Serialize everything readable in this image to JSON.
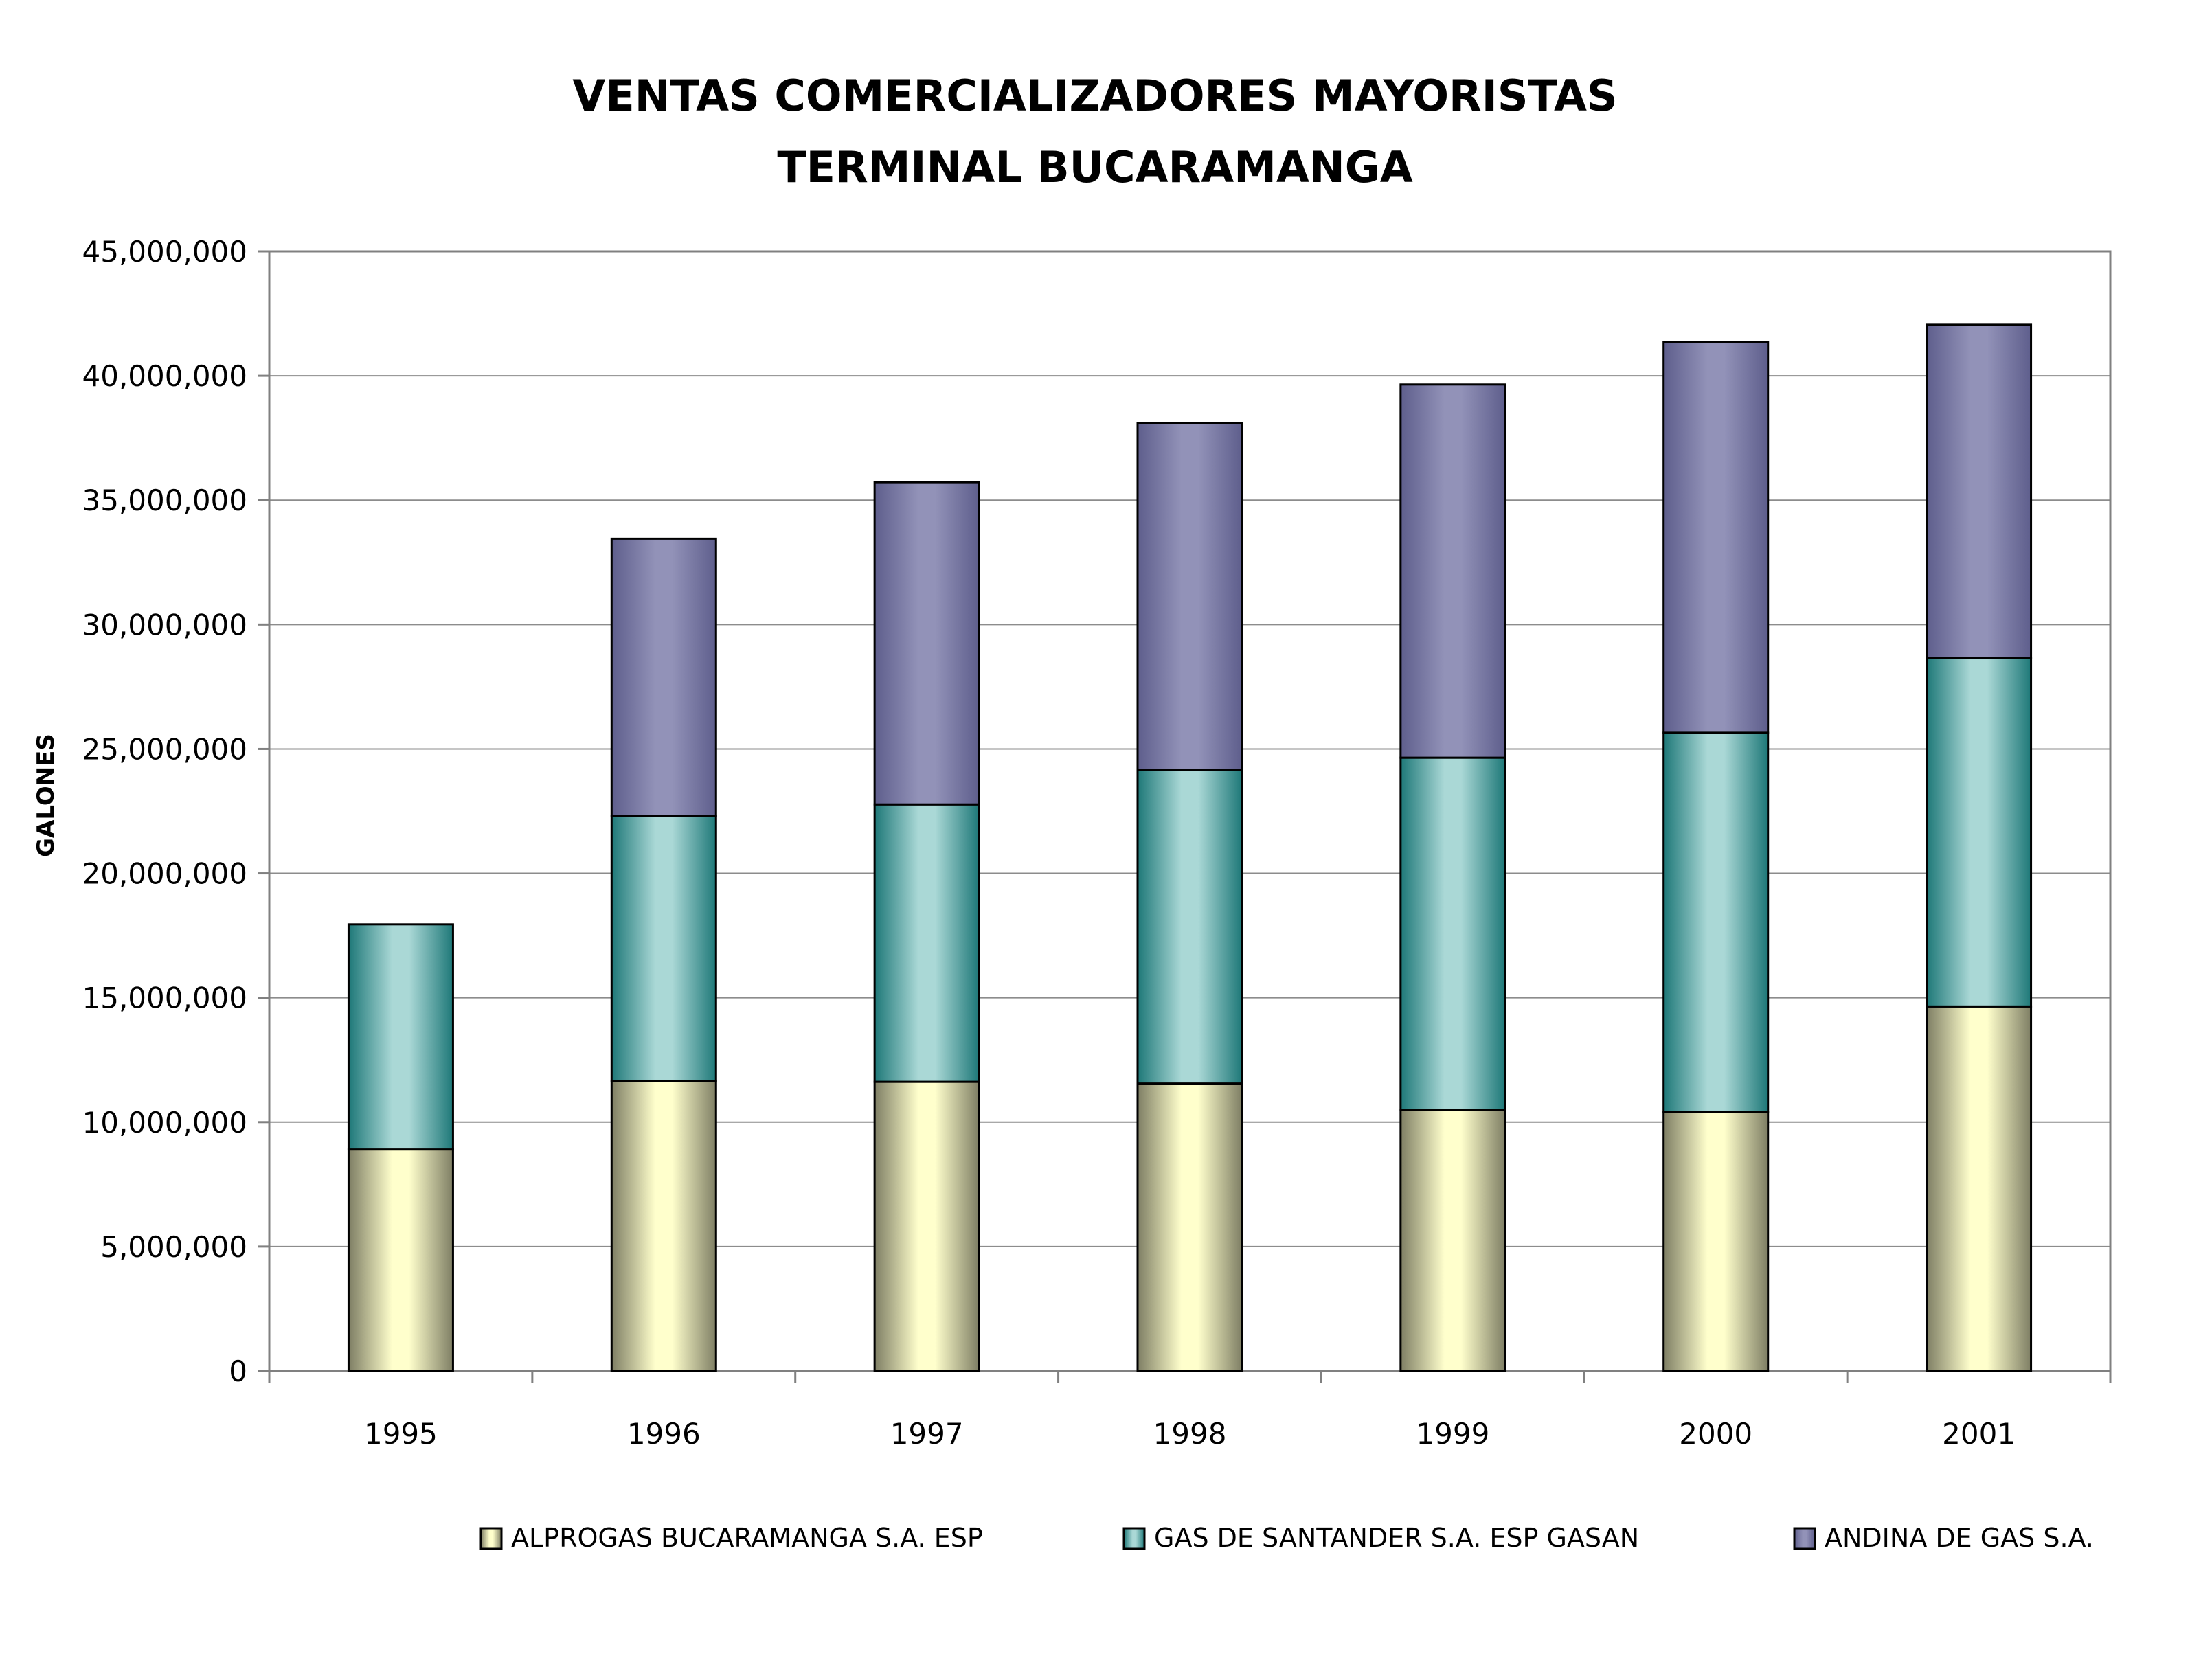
{
  "chart_data": {
    "type": "bar",
    "stacked": true,
    "title_lines": [
      "VENTAS COMERCIALIZADORES MAYORISTAS",
      "TERMINAL BUCARAMANGA"
    ],
    "xlabel": "",
    "ylabel": "GALONES",
    "categories": [
      "1995",
      "1996",
      "1997",
      "1998",
      "1999",
      "2000",
      "2001"
    ],
    "ylim": [
      0,
      45000000
    ],
    "ytick_step": 5000000,
    "yticks": [
      "0",
      "5,000,000",
      "10,000,000",
      "15,000,000",
      "20,000,000",
      "25,000,000",
      "30,000,000",
      "35,000,000",
      "40,000,000",
      "45,000,000"
    ],
    "grid": true,
    "legend_position": "bottom",
    "series": [
      {
        "name": "ALPROGAS BUCARAMANGA S.A. ESP",
        "values": [
          8900000,
          11650000,
          11620000,
          11550000,
          10500000,
          10400000,
          14650000
        ],
        "color_light": "#ffffcc",
        "color_dark": "#7e7e64"
      },
      {
        "name": "GAS DE SANTANDER S.A. ESP GASAN",
        "values": [
          9050000,
          10650000,
          11150000,
          12600000,
          14150000,
          15250000,
          14000000
        ],
        "color_light": "#aad8d6",
        "color_dark": "#1e7878"
      },
      {
        "name": "ANDINA DE GAS S.A.",
        "values": [
          0,
          11150000,
          12950000,
          13950000,
          15000000,
          15700000,
          13400000
        ],
        "color_light": "#9292b8",
        "color_dark": "#5e5e8c"
      }
    ]
  }
}
